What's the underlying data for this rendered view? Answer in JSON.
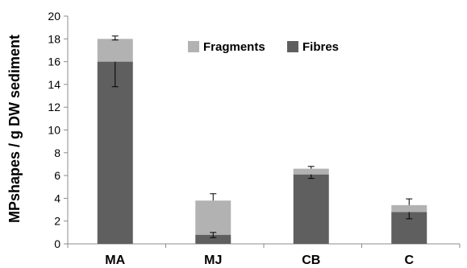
{
  "chart_data": {
    "type": "bar",
    "stacked": true,
    "title": "",
    "xlabel": "",
    "ylabel": "MPshapes / g DW sediment",
    "ylim": [
      0,
      20
    ],
    "yticks": [
      0,
      2,
      4,
      6,
      8,
      10,
      12,
      14,
      16,
      18,
      20
    ],
    "grid": false,
    "legend": "top-center",
    "categories": [
      "MA",
      "MJ",
      "CB",
      "C"
    ],
    "series": [
      {
        "name": "Fibres",
        "color": "#5f5f5f",
        "values": [
          16.0,
          0.8,
          6.1,
          2.8
        ],
        "error_low": [
          13.8,
          0.55,
          5.75,
          2.2
        ],
        "error_high": [
          null,
          1.0,
          null,
          null
        ]
      },
      {
        "name": "Fragments",
        "color": "#b2b2b2",
        "values": [
          2.0,
          3.0,
          0.5,
          0.6
        ],
        "error_low": [
          17.9,
          null,
          null,
          null
        ],
        "error_high": [
          18.25,
          4.4,
          6.8,
          3.95
        ]
      }
    ],
    "legend_order": [
      "Fragments",
      "Fibres"
    ]
  }
}
